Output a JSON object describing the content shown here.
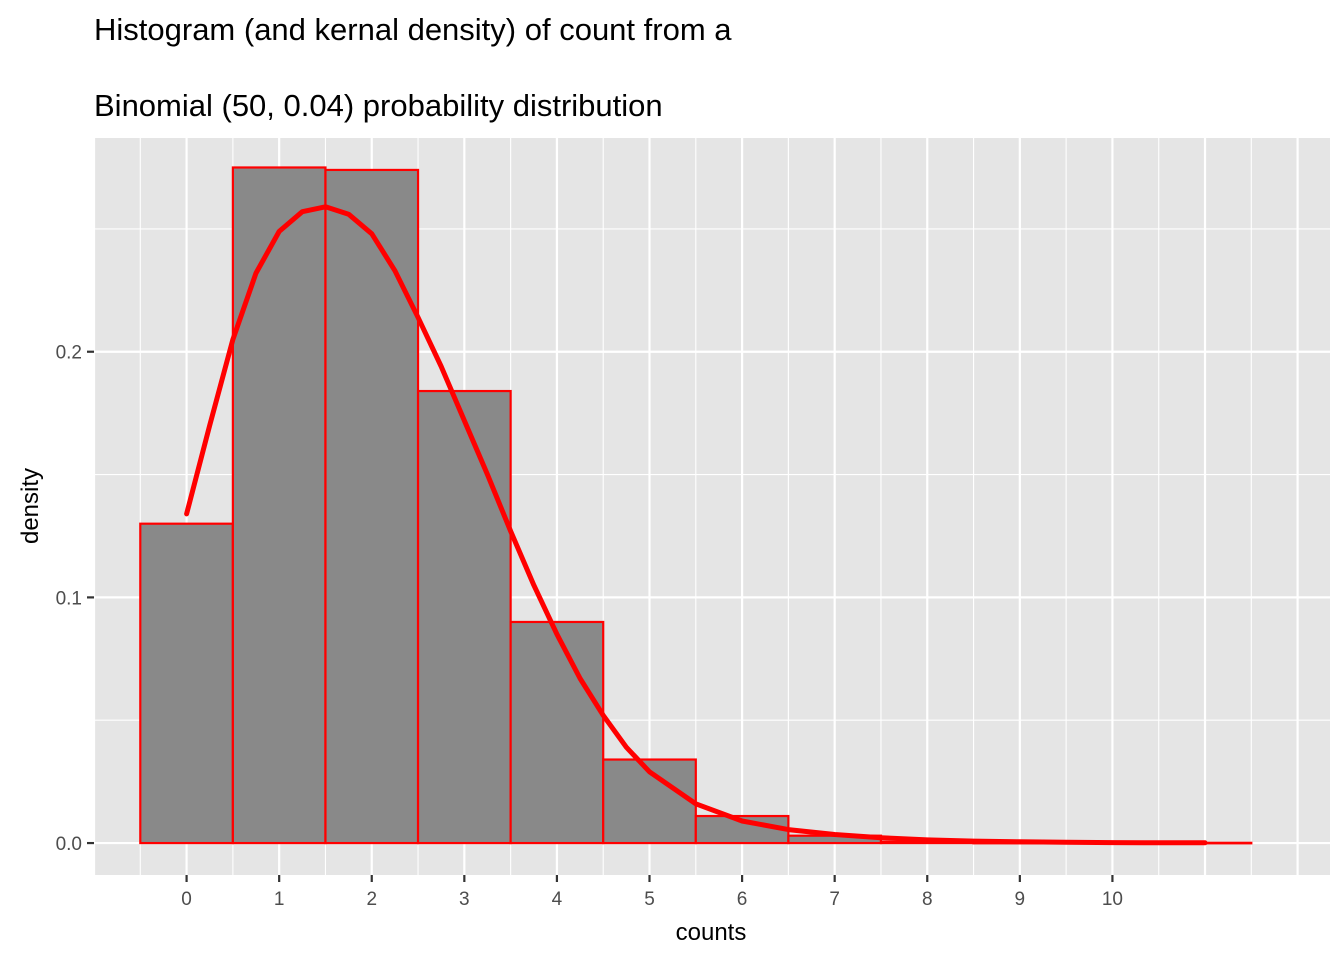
{
  "chart_data": {
    "type": "bar",
    "title_lines": [
      "Histogram (and kernal density) of count from a",
      "Binomial (50, 0.04) probability distribution"
    ],
    "xlabel": "counts",
    "ylabel": "density",
    "x_ticks": [
      "0",
      "1",
      "2",
      "3",
      "4",
      "5",
      "6",
      "7",
      "8",
      "9",
      "10"
    ],
    "y_ticks": [
      "0.0",
      "0.1",
      "0.2"
    ],
    "xlim": [
      -1.0,
      12.35
    ],
    "ylim": [
      -0.013,
      0.287
    ],
    "histogram": {
      "bin_width": 1,
      "bins": [
        {
          "x": 0,
          "density": 0.13
        },
        {
          "x": 1,
          "density": 0.275
        },
        {
          "x": 2,
          "density": 0.274
        },
        {
          "x": 3,
          "density": 0.184
        },
        {
          "x": 4,
          "density": 0.09
        },
        {
          "x": 5,
          "density": 0.034
        },
        {
          "x": 6,
          "density": 0.011
        },
        {
          "x": 7,
          "density": 0.003
        },
        {
          "x": 8,
          "density": 0.0005
        },
        {
          "x": 9,
          "density": 0.0001
        },
        {
          "x": 10,
          "density": 0.0001
        },
        {
          "x": 11,
          "density": 0.0001
        }
      ],
      "fill": "#898989",
      "outline": "#ff0000"
    },
    "density_curve": {
      "color": "#ff0000",
      "points": [
        [
          0,
          0.134
        ],
        [
          0.25,
          0.17
        ],
        [
          0.5,
          0.205
        ],
        [
          0.75,
          0.232
        ],
        [
          1.0,
          0.249
        ],
        [
          1.25,
          0.257
        ],
        [
          1.5,
          0.259
        ],
        [
          1.75,
          0.256
        ],
        [
          2.0,
          0.248
        ],
        [
          2.25,
          0.233
        ],
        [
          2.5,
          0.214
        ],
        [
          2.75,
          0.194
        ],
        [
          3.0,
          0.172
        ],
        [
          3.25,
          0.15
        ],
        [
          3.5,
          0.127
        ],
        [
          3.75,
          0.105
        ],
        [
          4.0,
          0.085
        ],
        [
          4.25,
          0.067
        ],
        [
          4.5,
          0.052
        ],
        [
          4.75,
          0.039
        ],
        [
          5.0,
          0.029
        ],
        [
          5.5,
          0.016
        ],
        [
          6.0,
          0.009
        ],
        [
          6.5,
          0.0055
        ],
        [
          7.0,
          0.0035
        ],
        [
          7.5,
          0.0022
        ],
        [
          8.0,
          0.0013
        ],
        [
          8.5,
          0.0008
        ],
        [
          9.0,
          0.0005
        ],
        [
          9.5,
          0.0003
        ],
        [
          10.0,
          0.0002
        ],
        [
          10.5,
          0.0001
        ],
        [
          11.0,
          0.0001
        ]
      ]
    },
    "grid": true,
    "panel_background": "#e5e5e5",
    "grid_color": "#ffffff"
  }
}
